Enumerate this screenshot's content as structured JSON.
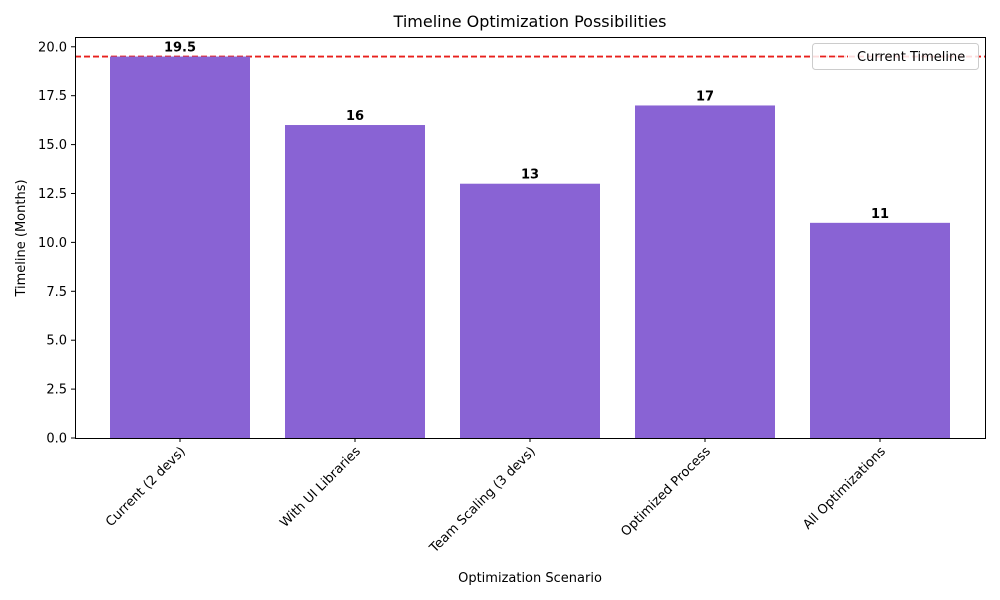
{
  "chart_data": {
    "type": "bar",
    "title": "Timeline Optimization Possibilities",
    "xlabel": "Optimization Scenario",
    "ylabel": "Timeline (Months)",
    "categories": [
      "Current (2 devs)",
      "With UI Libraries",
      "Team Scaling (3 devs)",
      "Optimized Process",
      "All Optimizations"
    ],
    "values": [
      19.5,
      16,
      13,
      17,
      11
    ],
    "data_labels": [
      "19.5",
      "16",
      "13",
      "17",
      "11"
    ],
    "ylim": [
      0,
      20.5
    ],
    "yticks": [
      0,
      2.5,
      5,
      7.5,
      10,
      12.5,
      15,
      17.5,
      20
    ],
    "ytick_labels": [
      "0.0",
      "2.5",
      "5.0",
      "7.5",
      "10.0",
      "12.5",
      "15.0",
      "17.5",
      "20.0"
    ],
    "grid": false,
    "bar_color": "#8963d4",
    "reference_line": {
      "value": 19.5,
      "label": "Current Timeline",
      "color": "#e8201c",
      "style": "dashed"
    },
    "legend": {
      "placement": "top-right",
      "entries": [
        "Current Timeline"
      ]
    }
  }
}
